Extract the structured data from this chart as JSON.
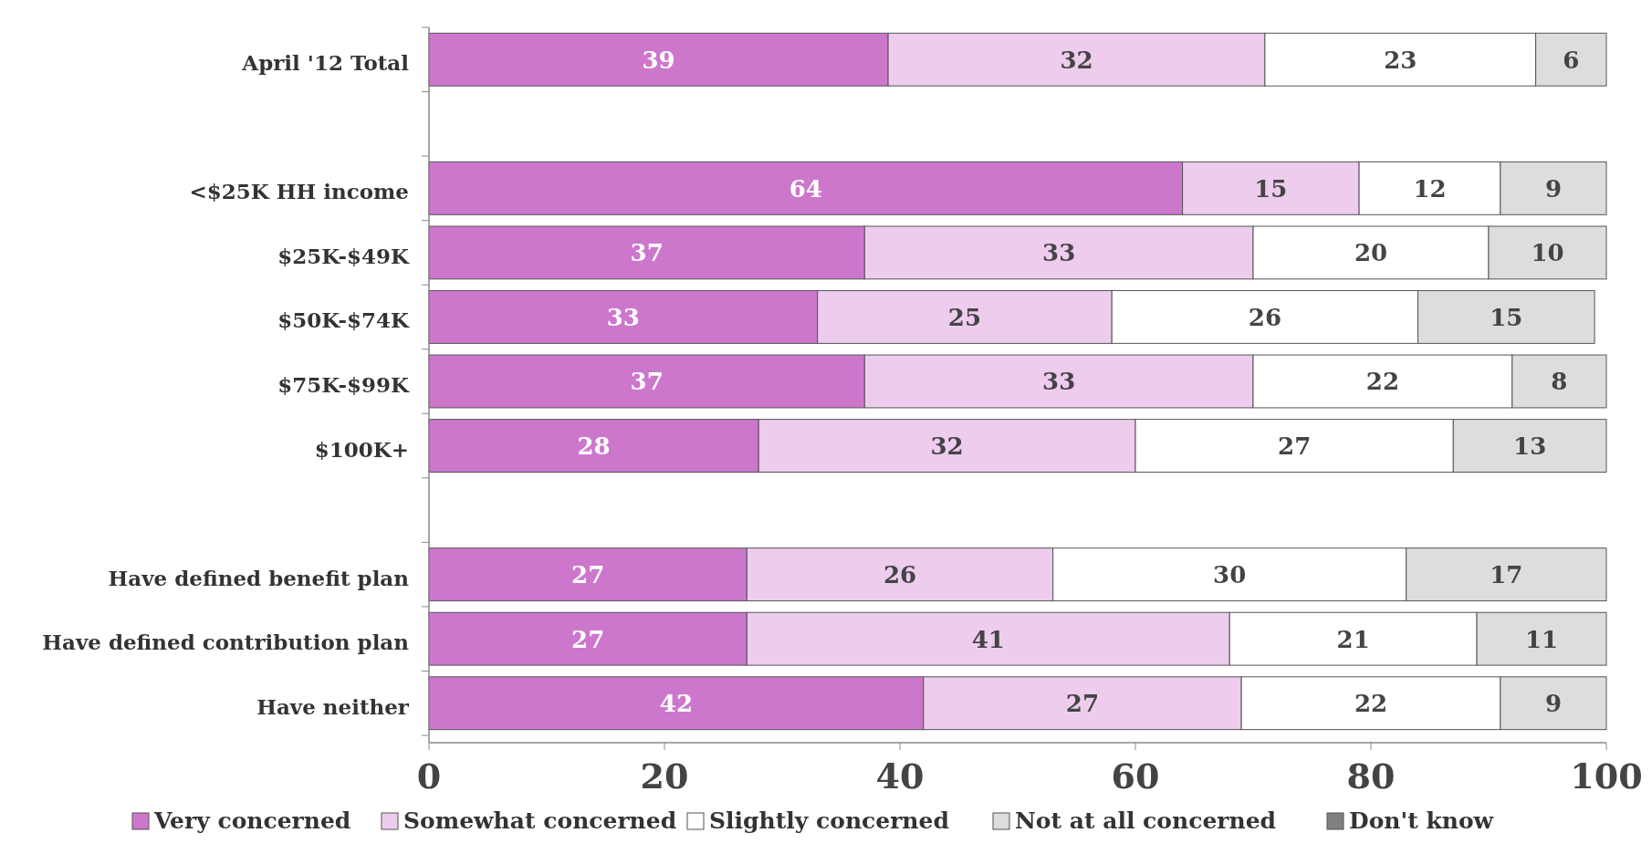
{
  "chart_data": {
    "type": "bar",
    "orientation": "horizontal",
    "stacked": true,
    "data_labels": true,
    "legend": "bottom",
    "grid": false,
    "categories": [
      "April '12 Total",
      null,
      "<$25K HH income",
      "$25K-$49K",
      "$50K-$74K",
      "$75K-$99K",
      "$100K+",
      null,
      "Have defined benefit plan",
      "Have defined contribution plan",
      "Have neither"
    ],
    "series": [
      {
        "name": "Very concerned",
        "color": "#cc77cc",
        "values": [
          39,
          null,
          64,
          37,
          33,
          37,
          28,
          null,
          27,
          27,
          42
        ]
      },
      {
        "name": "Somewhat concerned",
        "color": "#eeccee",
        "values": [
          32,
          null,
          15,
          33,
          25,
          33,
          32,
          null,
          26,
          41,
          27
        ]
      },
      {
        "name": "Slightly concerned",
        "color": "#ffffff",
        "values": [
          23,
          null,
          12,
          20,
          26,
          22,
          27,
          null,
          30,
          21,
          22
        ]
      },
      {
        "name": "Not at all concerned",
        "color": "#dddddd",
        "values": [
          6,
          null,
          9,
          10,
          15,
          8,
          13,
          null,
          17,
          11,
          9
        ]
      },
      {
        "name": "Don't know",
        "color": "#808080",
        "values": [
          null,
          null,
          null,
          null,
          null,
          null,
          null,
          null,
          null,
          null,
          null
        ]
      }
    ],
    "xlim": [
      0,
      100
    ],
    "xticks": [
      0,
      20,
      40,
      60,
      80,
      100
    ]
  }
}
